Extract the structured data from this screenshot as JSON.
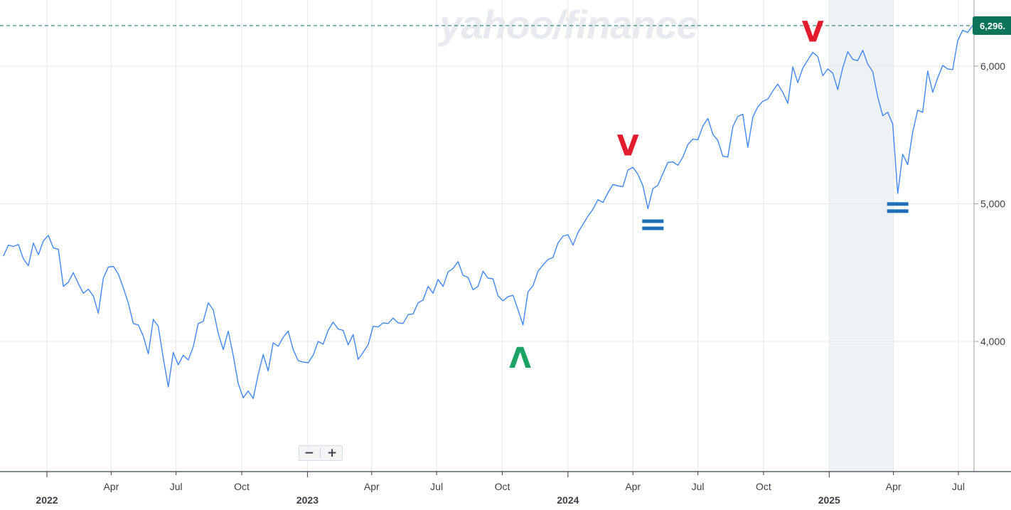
{
  "watermark": "yahoo/finance",
  "price_tag": "6,296.",
  "colors": {
    "line": "#4287f5",
    "grid": "#e6e8eb",
    "price_tag_bg": "#0a7358",
    "price_dashed": "#0a7358",
    "marker_sell": "#e31c2d",
    "marker_buy": "#1aa365",
    "marker_hold": "#1f6fb8",
    "shade": "#eef2f6"
  },
  "zoom": {
    "minus": "−",
    "plus": "+"
  },
  "chart_data": {
    "type": "line",
    "title": "",
    "xlabel": "",
    "ylabel": "",
    "ylim": [
      3100,
      6450
    ],
    "xlim": [
      "2021-11-01",
      "2025-07-14"
    ],
    "grid": true,
    "y_ticks": [
      {
        "value": 4000,
        "label": "4,000"
      },
      {
        "value": 5000,
        "label": "5,000"
      },
      {
        "value": 6000,
        "label": "6,000"
      }
    ],
    "x_ticks": [
      {
        "date": "2022-01-01",
        "label": "",
        "year": "2022"
      },
      {
        "date": "2022-04-01",
        "label": "Apr"
      },
      {
        "date": "2022-07-01",
        "label": "Jul"
      },
      {
        "date": "2022-10-01",
        "label": "Oct"
      },
      {
        "date": "2023-01-01",
        "label": "",
        "year": "2023"
      },
      {
        "date": "2023-04-01",
        "label": "Apr"
      },
      {
        "date": "2023-07-01",
        "label": "Jul"
      },
      {
        "date": "2023-10-01",
        "label": "Oct"
      },
      {
        "date": "2024-01-01",
        "label": "",
        "year": "2024"
      },
      {
        "date": "2024-04-01",
        "label": "Apr"
      },
      {
        "date": "2024-07-01",
        "label": "Jul"
      },
      {
        "date": "2024-10-01",
        "label": "Oct"
      },
      {
        "date": "2025-01-01",
        "label": "",
        "year": "2025"
      },
      {
        "date": "2025-04-01",
        "label": "Apr"
      },
      {
        "date": "2025-07-01",
        "label": "Jul"
      }
    ],
    "current_value": 6296,
    "shaded_range": [
      "2025-01-01",
      "2025-04-01"
    ],
    "series": [
      {
        "points": [
          [
            "2021-11-01",
            4620
          ],
          [
            "2021-11-08",
            4700
          ],
          [
            "2021-11-15",
            4690
          ],
          [
            "2021-11-22",
            4705
          ],
          [
            "2021-11-29",
            4600
          ],
          [
            "2021-12-06",
            4550
          ],
          [
            "2021-12-13",
            4715
          ],
          [
            "2021-12-20",
            4630
          ],
          [
            "2021-12-27",
            4730
          ],
          [
            "2022-01-03",
            4770
          ],
          [
            "2022-01-10",
            4680
          ],
          [
            "2022-01-17",
            4670
          ],
          [
            "2022-01-24",
            4400
          ],
          [
            "2022-01-31",
            4430
          ],
          [
            "2022-02-07",
            4500
          ],
          [
            "2022-02-14",
            4420
          ],
          [
            "2022-02-21",
            4350
          ],
          [
            "2022-02-28",
            4380
          ],
          [
            "2022-03-07",
            4330
          ],
          [
            "2022-03-14",
            4205
          ],
          [
            "2022-03-21",
            4460
          ],
          [
            "2022-03-28",
            4540
          ],
          [
            "2022-04-04",
            4545
          ],
          [
            "2022-04-11",
            4490
          ],
          [
            "2022-04-18",
            4390
          ],
          [
            "2022-04-25",
            4280
          ],
          [
            "2022-05-02",
            4130
          ],
          [
            "2022-05-09",
            4120
          ],
          [
            "2022-05-16",
            4040
          ],
          [
            "2022-05-23",
            3910
          ],
          [
            "2022-05-30",
            4160
          ],
          [
            "2022-06-06",
            4110
          ],
          [
            "2022-06-13",
            3880
          ],
          [
            "2022-06-20",
            3670
          ],
          [
            "2022-06-27",
            3920
          ],
          [
            "2022-07-04",
            3830
          ],
          [
            "2022-07-11",
            3900
          ],
          [
            "2022-07-18",
            3865
          ],
          [
            "2022-07-25",
            3960
          ],
          [
            "2022-08-01",
            4130
          ],
          [
            "2022-08-08",
            4145
          ],
          [
            "2022-08-15",
            4280
          ],
          [
            "2022-08-22",
            4230
          ],
          [
            "2022-08-29",
            4060
          ],
          [
            "2022-09-05",
            3940
          ],
          [
            "2022-09-12",
            4075
          ],
          [
            "2022-09-19",
            3900
          ],
          [
            "2022-09-26",
            3695
          ],
          [
            "2022-10-03",
            3590
          ],
          [
            "2022-10-10",
            3640
          ],
          [
            "2022-10-17",
            3585
          ],
          [
            "2022-10-24",
            3760
          ],
          [
            "2022-10-31",
            3905
          ],
          [
            "2022-11-07",
            3785
          ],
          [
            "2022-11-14",
            3990
          ],
          [
            "2022-11-21",
            3965
          ],
          [
            "2022-11-28",
            4030
          ],
          [
            "2022-12-05",
            4075
          ],
          [
            "2022-12-12",
            3940
          ],
          [
            "2022-12-19",
            3860
          ],
          [
            "2022-12-26",
            3850
          ],
          [
            "2023-01-02",
            3845
          ],
          [
            "2023-01-09",
            3900
          ],
          [
            "2023-01-16",
            4000
          ],
          [
            "2023-01-23",
            3980
          ],
          [
            "2023-01-30",
            4080
          ],
          [
            "2023-02-06",
            4140
          ],
          [
            "2023-02-13",
            4090
          ],
          [
            "2023-02-20",
            4080
          ],
          [
            "2023-02-27",
            3975
          ],
          [
            "2023-03-06",
            4050
          ],
          [
            "2023-03-13",
            3870
          ],
          [
            "2023-03-20",
            3920
          ],
          [
            "2023-03-27",
            3975
          ],
          [
            "2023-04-03",
            4110
          ],
          [
            "2023-04-10",
            4105
          ],
          [
            "2023-04-17",
            4135
          ],
          [
            "2023-04-24",
            4130
          ],
          [
            "2023-05-01",
            4170
          ],
          [
            "2023-05-08",
            4135
          ],
          [
            "2023-05-15",
            4130
          ],
          [
            "2023-05-22",
            4195
          ],
          [
            "2023-05-29",
            4200
          ],
          [
            "2023-06-05",
            4280
          ],
          [
            "2023-06-12",
            4300
          ],
          [
            "2023-06-19",
            4400
          ],
          [
            "2023-06-26",
            4350
          ],
          [
            "2023-07-03",
            4450
          ],
          [
            "2023-07-10",
            4400
          ],
          [
            "2023-07-17",
            4505
          ],
          [
            "2023-07-24",
            4530
          ],
          [
            "2023-07-31",
            4580
          ],
          [
            "2023-08-07",
            4480
          ],
          [
            "2023-08-14",
            4465
          ],
          [
            "2023-08-21",
            4375
          ],
          [
            "2023-08-28",
            4400
          ],
          [
            "2023-09-04",
            4510
          ],
          [
            "2023-09-11",
            4460
          ],
          [
            "2023-09-18",
            4455
          ],
          [
            "2023-09-25",
            4330
          ],
          [
            "2023-10-02",
            4295
          ],
          [
            "2023-10-09",
            4325
          ],
          [
            "2023-10-16",
            4335
          ],
          [
            "2023-10-23",
            4230
          ],
          [
            "2023-10-30",
            4120
          ],
          [
            "2023-11-06",
            4360
          ],
          [
            "2023-11-13",
            4405
          ],
          [
            "2023-11-20",
            4510
          ],
          [
            "2023-11-27",
            4555
          ],
          [
            "2023-12-04",
            4595
          ],
          [
            "2023-12-11",
            4610
          ],
          [
            "2023-12-18",
            4715
          ],
          [
            "2023-12-25",
            4765
          ],
          [
            "2024-01-01",
            4775
          ],
          [
            "2024-01-08",
            4700
          ],
          [
            "2024-01-15",
            4790
          ],
          [
            "2024-01-22",
            4850
          ],
          [
            "2024-01-29",
            4910
          ],
          [
            "2024-02-05",
            4960
          ],
          [
            "2024-02-12",
            5030
          ],
          [
            "2024-02-19",
            5010
          ],
          [
            "2024-02-26",
            5080
          ],
          [
            "2024-03-04",
            5140
          ],
          [
            "2024-03-11",
            5130
          ],
          [
            "2024-03-18",
            5125
          ],
          [
            "2024-03-25",
            5245
          ],
          [
            "2024-04-01",
            5265
          ],
          [
            "2024-04-08",
            5215
          ],
          [
            "2024-04-15",
            5130
          ],
          [
            "2024-04-22",
            4965
          ],
          [
            "2024-04-29",
            5110
          ],
          [
            "2024-05-06",
            5135
          ],
          [
            "2024-05-13",
            5220
          ],
          [
            "2024-05-20",
            5300
          ],
          [
            "2024-05-27",
            5305
          ],
          [
            "2024-06-03",
            5280
          ],
          [
            "2024-06-10",
            5340
          ],
          [
            "2024-06-17",
            5430
          ],
          [
            "2024-06-24",
            5470
          ],
          [
            "2024-07-01",
            5465
          ],
          [
            "2024-07-08",
            5565
          ],
          [
            "2024-07-15",
            5620
          ],
          [
            "2024-07-22",
            5505
          ],
          [
            "2024-07-29",
            5460
          ],
          [
            "2024-08-05",
            5345
          ],
          [
            "2024-08-12",
            5340
          ],
          [
            "2024-08-19",
            5560
          ],
          [
            "2024-08-26",
            5635
          ],
          [
            "2024-09-02",
            5650
          ],
          [
            "2024-09-09",
            5410
          ],
          [
            "2024-09-16",
            5630
          ],
          [
            "2024-09-23",
            5705
          ],
          [
            "2024-09-30",
            5745
          ],
          [
            "2024-10-07",
            5760
          ],
          [
            "2024-10-14",
            5820
          ],
          [
            "2024-10-21",
            5870
          ],
          [
            "2024-10-28",
            5810
          ],
          [
            "2024-11-04",
            5730
          ],
          [
            "2024-11-11",
            5995
          ],
          [
            "2024-11-18",
            5880
          ],
          [
            "2024-11-25",
            5985
          ],
          [
            "2024-12-02",
            6045
          ],
          [
            "2024-12-09",
            6100
          ],
          [
            "2024-12-16",
            6070
          ],
          [
            "2024-12-23",
            5930
          ],
          [
            "2024-12-30",
            5980
          ],
          [
            "2025-01-06",
            5950
          ],
          [
            "2025-01-13",
            5830
          ],
          [
            "2025-01-20",
            5990
          ],
          [
            "2025-01-27",
            6105
          ],
          [
            "2025-02-03",
            6050
          ],
          [
            "2025-02-10",
            6040
          ],
          [
            "2025-02-17",
            6115
          ],
          [
            "2025-02-24",
            6015
          ],
          [
            "2025-03-03",
            5960
          ],
          [
            "2025-03-10",
            5775
          ],
          [
            "2025-03-17",
            5640
          ],
          [
            "2025-03-24",
            5665
          ],
          [
            "2025-03-31",
            5580
          ],
          [
            "2025-04-07",
            5075
          ],
          [
            "2025-04-14",
            5360
          ],
          [
            "2025-04-21",
            5285
          ],
          [
            "2025-04-28",
            5520
          ],
          [
            "2025-05-05",
            5680
          ],
          [
            "2025-05-12",
            5665
          ],
          [
            "2025-05-19",
            5965
          ],
          [
            "2025-05-26",
            5810
          ],
          [
            "2025-06-02",
            5915
          ],
          [
            "2025-06-09",
            6005
          ],
          [
            "2025-06-16",
            5980
          ],
          [
            "2025-06-23",
            5975
          ],
          [
            "2025-06-30",
            6185
          ],
          [
            "2025-07-07",
            6260
          ],
          [
            "2025-07-14",
            6245
          ],
          [
            "2025-07-21",
            6296
          ]
        ]
      }
    ],
    "markers": [
      {
        "date": "2023-10-26",
        "value": 3880,
        "glyph": "Λ",
        "kind": "buy"
      },
      {
        "date": "2024-03-25",
        "value": 5425,
        "glyph": "V",
        "kind": "sell"
      },
      {
        "date": "2024-04-29",
        "value": 4845,
        "glyph": "=",
        "kind": "hold"
      },
      {
        "date": "2024-12-09",
        "value": 6250,
        "glyph": "V",
        "kind": "sell"
      },
      {
        "date": "2025-04-07",
        "value": 4970,
        "glyph": "=",
        "kind": "hold"
      }
    ]
  }
}
